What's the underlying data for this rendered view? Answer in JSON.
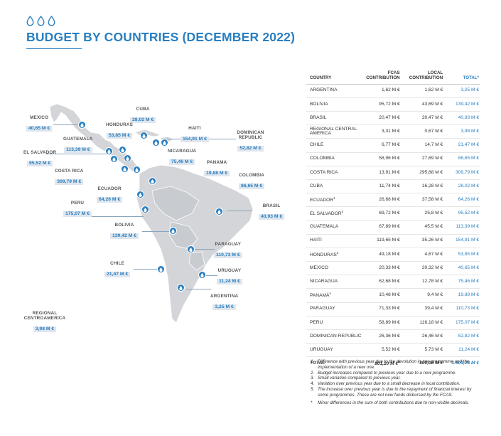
{
  "title": "BUDGET BY COUNTRIES (DECEMBER 2022)",
  "colors": {
    "accent": "#2a7fc0",
    "label_bg": "#dfe6ee",
    "land": "#d3d5d8"
  },
  "icons": {
    "drop": "water-drop-icon"
  },
  "map_labels": [
    {
      "id": "mexico",
      "name": "MEXICO",
      "value": "40,65 M €"
    },
    {
      "id": "cuba",
      "name": "CUBA",
      "value": "28,02 M €"
    },
    {
      "id": "honduras",
      "name": "HONDURAS",
      "value": "53,85 M €"
    },
    {
      "id": "haiti",
      "name": "HAITI",
      "value": "154,91 M €"
    },
    {
      "id": "dominican",
      "name": "DOMINICAN REPUBLIC",
      "value": "52,82 M €"
    },
    {
      "id": "guatemala",
      "name": "GUATEMALA",
      "value": "113,39 M €"
    },
    {
      "id": "elsalvador",
      "name": "EL SALVADOR",
      "value": "95,52 M €"
    },
    {
      "id": "nicaragua",
      "name": "NICARAGUA",
      "value": "75,46 M €"
    },
    {
      "id": "panama",
      "name": "PANAMA",
      "value": "19,88 M €"
    },
    {
      "id": "costarica",
      "name": "COSTA RICA",
      "value": "309,79 M €"
    },
    {
      "id": "colombia",
      "name": "COLOMBIA",
      "value": "86,65 M €"
    },
    {
      "id": "ecuador",
      "name": "ECUADOR",
      "value": "64,26 M €"
    },
    {
      "id": "peru",
      "name": "PERU",
      "value": "175,07 M €"
    },
    {
      "id": "brasil",
      "name": "BRASIL",
      "value": "40,93 M €"
    },
    {
      "id": "bolivia",
      "name": "BOLIVIA",
      "value": "139,42 M €"
    },
    {
      "id": "paraguay",
      "name": "PARAGUAY",
      "value": "110,73 M €"
    },
    {
      "id": "chile",
      "name": "CHILE",
      "value": "21,47 M €"
    },
    {
      "id": "uruguay",
      "name": "URUGUAY",
      "value": "11,24 M €"
    },
    {
      "id": "argentina",
      "name": "ARGENTINA",
      "value": "3,25 M €"
    },
    {
      "id": "regional",
      "name": "REGIONAL CENTROAMERICA",
      "value": "3,98 M €"
    }
  ],
  "table": {
    "headers": {
      "country": "COUNTRY",
      "fcas": "FCAS CONTRIBUTION",
      "local": "LOCAL CONTRIBUTION",
      "total": "TOTAL*"
    },
    "rows": [
      {
        "country": "ARGENTINA",
        "sup": "",
        "fcas": "1,62 M €",
        "local": "1,62 M €",
        "total": "3,25 M €"
      },
      {
        "country": "BOLIVIA",
        "sup": "",
        "fcas": "95,72 M €",
        "local": "43,69 M €",
        "total": "139,42 M €"
      },
      {
        "country": "BRASIL",
        "sup": "",
        "fcas": "20,47 M €",
        "local": "20,47 M €",
        "total": "40,93 M €"
      },
      {
        "country": "REGIONAL CENTRAL AMERICA",
        "sup": "",
        "fcas": "3,31 M €",
        "local": "0,67 M €",
        "total": "3,98 M €"
      },
      {
        "country": "CHILE",
        "sup": "",
        "fcas": "6,77 M €",
        "local": "14,7 M €",
        "total": "21,47 M €"
      },
      {
        "country": "COLOMBIA",
        "sup": "",
        "fcas": "58,96 M €",
        "local": "27,69 M €",
        "total": "86,65 M €"
      },
      {
        "country": "COSTA RICA",
        "sup": "",
        "fcas": "13,91 M €",
        "local": "295,88 M €",
        "total": "309,79 M €"
      },
      {
        "country": "CUBA",
        "sup": "",
        "fcas": "11,74 M €",
        "local": "16,28 M €",
        "total": "28,02 M €"
      },
      {
        "country": "ECUADOR",
        "sup": "1",
        "fcas": "26,68 M €",
        "local": "37,58 M €",
        "total": "64,26 M €"
      },
      {
        "country": "EL SALVADOR",
        "sup": "2",
        "fcas": "69,72 M €",
        "local": "25,8 M €",
        "total": "95,52 M €"
      },
      {
        "country": "GUATEMALA",
        "sup": "",
        "fcas": "67,89 M €",
        "local": "45,5 M €",
        "total": "113,39 M €"
      },
      {
        "country": "HAITI",
        "sup": "",
        "fcas": "119,65 M €",
        "local": "35,26 M €",
        "total": "154,91 M €"
      },
      {
        "country": "HONDURAS",
        "sup": "3",
        "fcas": "49,18 M €",
        "local": "4,67 M €",
        "total": "53,85 M €"
      },
      {
        "country": "MEXICO",
        "sup": "",
        "fcas": "20,33 M €",
        "local": "20,32 M €",
        "total": "40,65 M €"
      },
      {
        "country": "NICARAGUA",
        "sup": "",
        "fcas": "62,68 M €",
        "local": "12,78 M €",
        "total": "75,46 M €"
      },
      {
        "country": "PANAMÁ",
        "sup": "4",
        "fcas": "10,48 M €",
        "local": "9,4 M €",
        "total": "19,88 M €"
      },
      {
        "country": "PARAGUAY",
        "sup": "",
        "fcas": "71,33 M €",
        "local": "39,4 M €",
        "total": "110,73 M €"
      },
      {
        "country": "PERU",
        "sup": "",
        "fcas": "58,89 M €",
        "local": "116,18 M €",
        "total": "175,07 M €"
      },
      {
        "country": "DOMINICAN REPUBLIC",
        "sup": "",
        "fcas": "26,36 M €",
        "local": "26,46 M €",
        "total": "52,82 M €"
      },
      {
        "country": "URUGUAY",
        "sup": "",
        "fcas": "5,52 M €",
        "local": "5,73 M €",
        "total": "11,24 M €"
      }
    ],
    "total_row": {
      "label": "TOTAL",
      "fcas": "801,20 M €",
      "fcas_sup": "5",
      "local": "800,08 M €",
      "total": "1.601,28 M €"
    }
  },
  "notes": [
    {
      "n": "1.",
      "text": "Difference with previous year due to the devolution in one programme and the implementation of a new one."
    },
    {
      "n": "2.",
      "text": "Budget increases compared to previous year due to a new programme."
    },
    {
      "n": "3.",
      "text": "Small variation compared to previous year."
    },
    {
      "n": "4.",
      "text": "Variation over previous year due to a small decrease in local contribution."
    },
    {
      "n": "5.",
      "text": "The increase over previous year is due to the repayment of financial interest by some programmes. These are not new funds disbursed by the FCAS."
    }
  ],
  "minor_note": {
    "n": "*",
    "text": "Minor differences in the sum of both contributions due to non-visible decimals."
  }
}
